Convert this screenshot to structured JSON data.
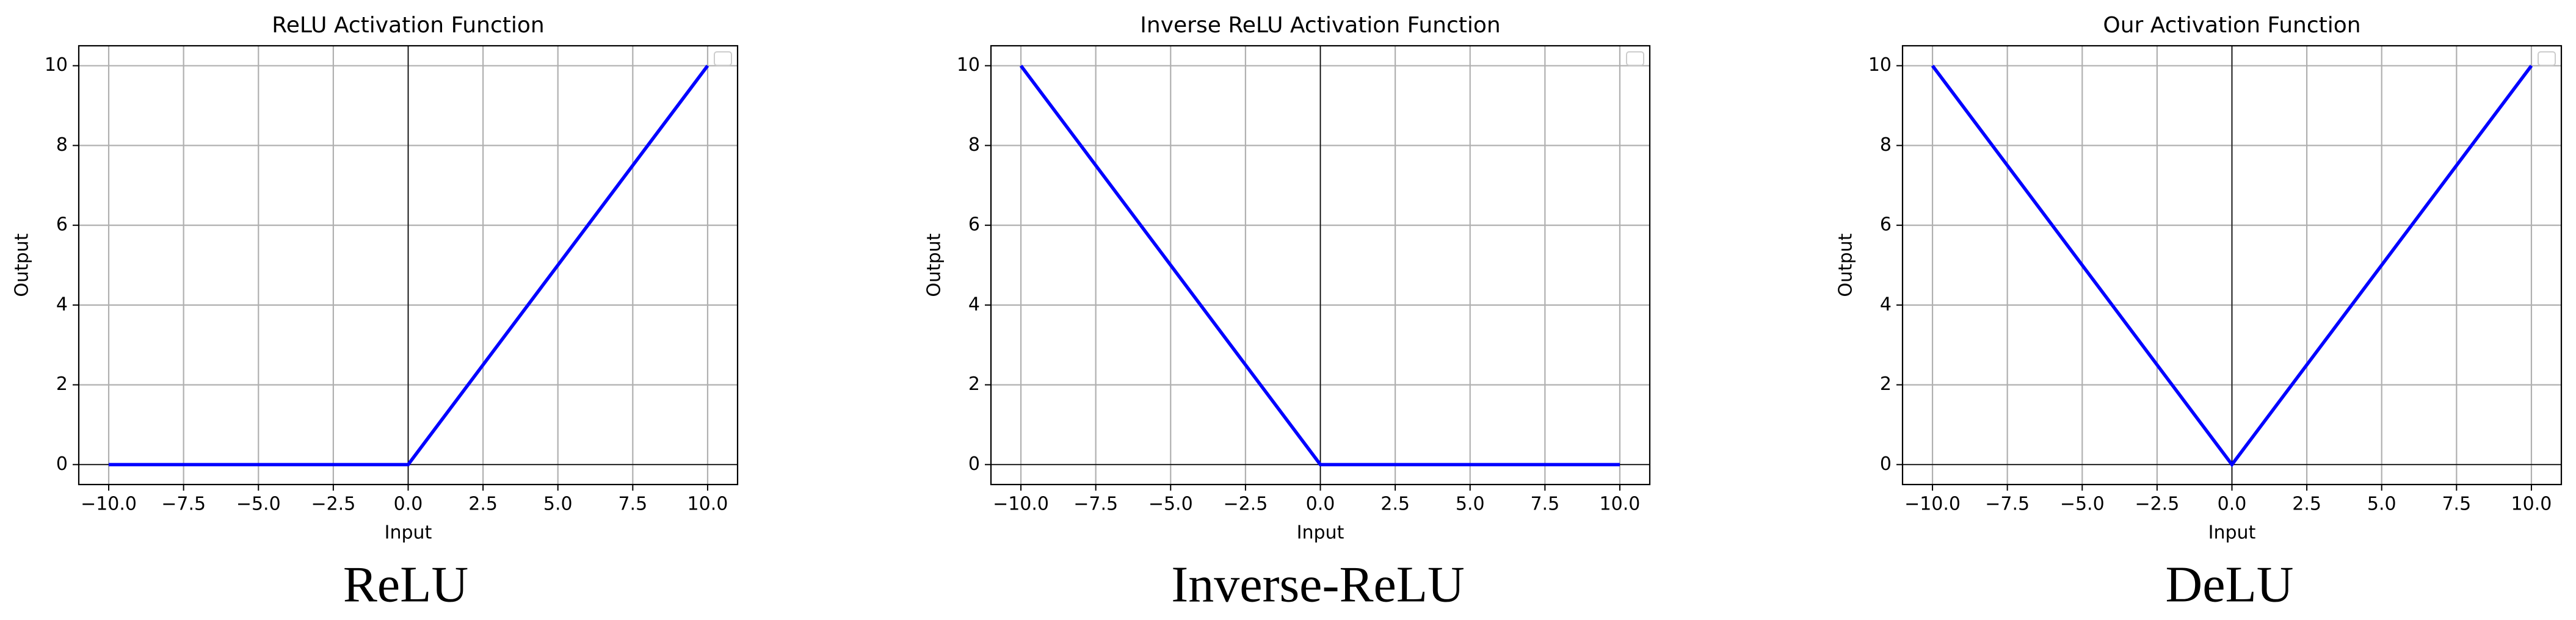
{
  "chart_data": [
    {
      "type": "line",
      "title": "ReLU Activation Function",
      "x_label": "Input",
      "y_label": "Output",
      "caption": "ReLU",
      "x": [
        -10,
        0,
        10
      ],
      "series": [
        {
          "color": "#0000ff",
          "values": [
            0,
            0,
            10
          ]
        }
      ],
      "xlim": [
        -11,
        11
      ],
      "ylim": [
        -0.5,
        10.5
      ],
      "grid": true,
      "xticks": [
        {
          "value": -10,
          "label": "−10.0"
        },
        {
          "value": -7.5,
          "label": "−7.5"
        },
        {
          "value": -5,
          "label": "−5.0"
        },
        {
          "value": -2.5,
          "label": "−2.5"
        },
        {
          "value": 0,
          "label": "0.0"
        },
        {
          "value": 2.5,
          "label": "2.5"
        },
        {
          "value": 5,
          "label": "5.0"
        },
        {
          "value": 7.5,
          "label": "7.5"
        },
        {
          "value": 10,
          "label": "10.0"
        }
      ],
      "yticks": [
        0,
        2,
        4,
        6,
        8,
        10
      ],
      "legend": "upper right"
    },
    {
      "type": "line",
      "title": "Inverse ReLU Activation Function",
      "x_label": "Input",
      "y_label": "Output",
      "caption": "Inverse-ReLU",
      "x": [
        -10,
        0,
        10
      ],
      "series": [
        {
          "color": "#0000ff",
          "values": [
            10,
            0,
            0
          ]
        }
      ],
      "xlim": [
        -11,
        11
      ],
      "ylim": [
        -0.5,
        10.5
      ],
      "grid": true,
      "xticks": [
        {
          "value": -10,
          "label": "−10.0"
        },
        {
          "value": -7.5,
          "label": "−7.5"
        },
        {
          "value": -5,
          "label": "−5.0"
        },
        {
          "value": -2.5,
          "label": "−2.5"
        },
        {
          "value": 0,
          "label": "0.0"
        },
        {
          "value": 2.5,
          "label": "2.5"
        },
        {
          "value": 5,
          "label": "5.0"
        },
        {
          "value": 7.5,
          "label": "7.5"
        },
        {
          "value": 10,
          "label": "10.0"
        }
      ],
      "yticks": [
        0,
        2,
        4,
        6,
        8,
        10
      ],
      "legend": "upper right"
    },
    {
      "type": "line",
      "title": "Our Activation Function",
      "x_label": "Input",
      "y_label": "Output",
      "caption": "DeLU",
      "x": [
        -10,
        0,
        10
      ],
      "series": [
        {
          "color": "#0000ff",
          "values": [
            10,
            0,
            10
          ]
        }
      ],
      "xlim": [
        -11,
        11
      ],
      "ylim": [
        -0.5,
        10.5
      ],
      "grid": true,
      "xticks": [
        {
          "value": -10,
          "label": "−10.0"
        },
        {
          "value": -7.5,
          "label": "−7.5"
        },
        {
          "value": -5,
          "label": "−5.0"
        },
        {
          "value": -2.5,
          "label": "−2.5"
        },
        {
          "value": 0,
          "label": "0.0"
        },
        {
          "value": 2.5,
          "label": "2.5"
        },
        {
          "value": 5,
          "label": "5.0"
        },
        {
          "value": 7.5,
          "label": "7.5"
        },
        {
          "value": 10,
          "label": "10.0"
        }
      ],
      "yticks": [
        0,
        2,
        4,
        6,
        8,
        10
      ],
      "legend": "upper right"
    }
  ]
}
